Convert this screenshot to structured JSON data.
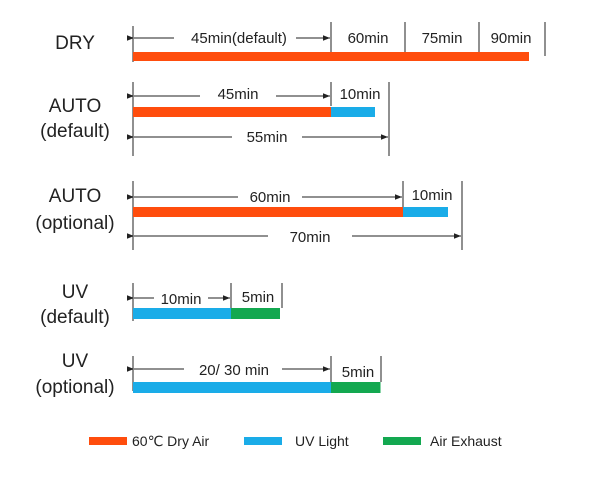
{
  "colors": {
    "dry_air": "#ff4d0d",
    "uv_light": "#1aace8",
    "air_exhaust": "#13a850",
    "text": "#222222"
  },
  "rows": [
    {
      "label_lines": [
        "DRY"
      ],
      "segments": [
        {
          "type": "dry_air",
          "minutes": 45
        },
        {
          "type": "dry_air",
          "minutes": 15
        },
        {
          "type": "dry_air",
          "minutes": 15
        },
        {
          "type": "dry_air",
          "minutes": 15
        }
      ],
      "segment_labels": [
        "45min(default)",
        "60min",
        "75min",
        "90min"
      ],
      "total_label": ""
    },
    {
      "label_lines": [
        "AUTO",
        "(default)"
      ],
      "segments": [
        {
          "type": "dry_air",
          "minutes": 45
        },
        {
          "type": "uv_light",
          "minutes": 10
        }
      ],
      "segment_labels": [
        "45min",
        "10min"
      ],
      "total_label": "55min"
    },
    {
      "label_lines": [
        "AUTO",
        "(optional)"
      ],
      "segments": [
        {
          "type": "dry_air",
          "minutes": 60
        },
        {
          "type": "uv_light",
          "minutes": 10
        }
      ],
      "segment_labels": [
        "60min",
        "10min"
      ],
      "total_label": "70min"
    },
    {
      "label_lines": [
        "UV",
        "(default)"
      ],
      "segments": [
        {
          "type": "uv_light",
          "minutes": 10
        },
        {
          "type": "air_exhaust",
          "minutes": 5
        }
      ],
      "segment_labels": [
        "10min",
        "5min"
      ],
      "total_label": ""
    },
    {
      "label_lines": [
        "UV",
        "(optional)"
      ],
      "segments": [
        {
          "type": "uv_light",
          "minutes": 20
        },
        {
          "type": "air_exhaust",
          "minutes": 5
        }
      ],
      "segment_labels": [
        "20/ 30 min",
        "5min"
      ],
      "total_label": ""
    }
  ],
  "legend": [
    {
      "type": "dry_air",
      "label": "60℃ Dry Air"
    },
    {
      "type": "uv_light",
      "label": "UV Light"
    },
    {
      "type": "air_exhaust",
      "label": "Air Exhaust"
    }
  ]
}
